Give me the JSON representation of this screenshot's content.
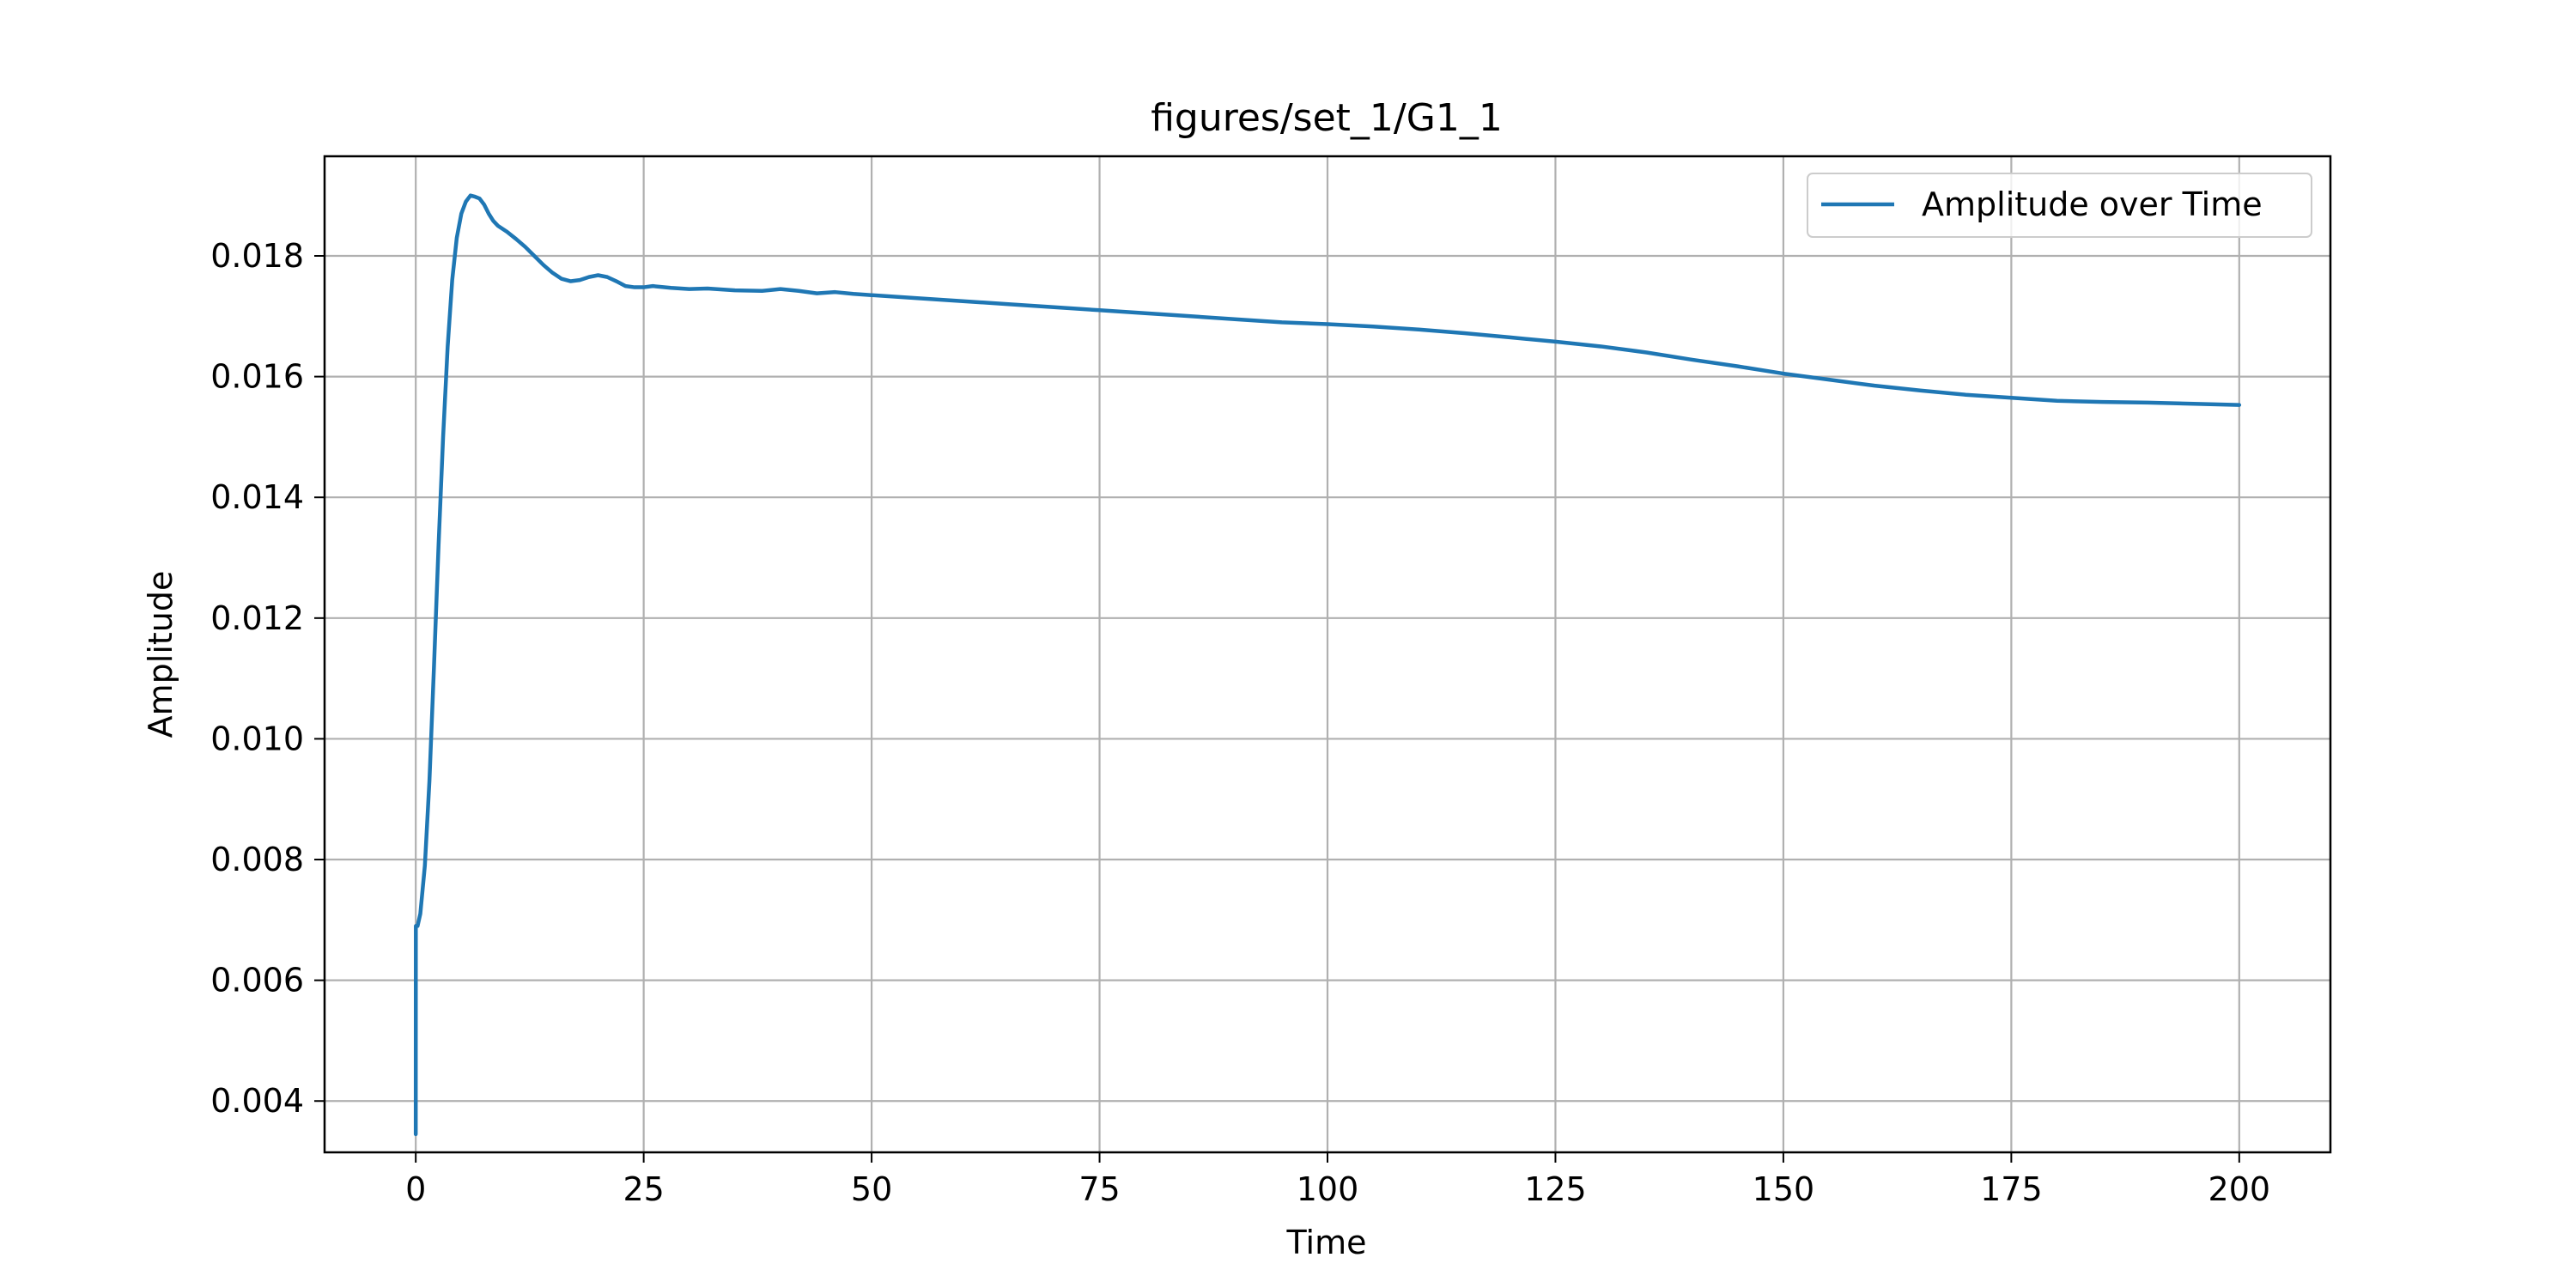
{
  "chart_data": {
    "type": "line",
    "title": "figures/set_1/G1_1",
    "xlabel": "Time",
    "ylabel": "Amplitude",
    "xlim": [
      -10,
      210
    ],
    "ylim": [
      0.00315,
      0.01965
    ],
    "xticks": [
      0,
      25,
      50,
      75,
      100,
      125,
      150,
      175,
      200
    ],
    "xtick_labels": [
      "0",
      "25",
      "50",
      "75",
      "100",
      "125",
      "150",
      "175",
      "200"
    ],
    "yticks": [
      0.004,
      0.006,
      0.008,
      0.01,
      0.012,
      0.014,
      0.016,
      0.018
    ],
    "ytick_labels": [
      "0.004",
      "0.006",
      "0.008",
      "0.010",
      "0.012",
      "0.014",
      "0.016",
      "0.018"
    ],
    "grid": true,
    "legend_position": "top-right",
    "series": [
      {
        "name": "Amplitude over Time",
        "color": "#1f77b4",
        "x": [
          0,
          0.01,
          0.2,
          0.5,
          1,
          1.5,
          2,
          2.5,
          3,
          3.5,
          4,
          4.5,
          5,
          5.5,
          6,
          6.5,
          7,
          7.5,
          8,
          8.5,
          9,
          10,
          11,
          12,
          13,
          14,
          15,
          16,
          17,
          18,
          19,
          20,
          21,
          22,
          23,
          24,
          25,
          26,
          28,
          30,
          32,
          35,
          38,
          40,
          42,
          44,
          46,
          48,
          50,
          55,
          60,
          65,
          70,
          75,
          80,
          85,
          90,
          95,
          100,
          105,
          110,
          115,
          120,
          125,
          130,
          135,
          140,
          145,
          150,
          155,
          160,
          165,
          170,
          175,
          180,
          185,
          190,
          195,
          200
        ],
        "y": [
          0.00345,
          0.0069,
          0.0069,
          0.0071,
          0.0079,
          0.0093,
          0.0112,
          0.0132,
          0.015,
          0.0165,
          0.0176,
          0.0183,
          0.0187,
          0.0189,
          0.019,
          0.01898,
          0.01895,
          0.01885,
          0.0187,
          0.01858,
          0.0185,
          0.0184,
          0.01828,
          0.01815,
          0.018,
          0.01785,
          0.01772,
          0.01762,
          0.01758,
          0.0176,
          0.01765,
          0.01768,
          0.01765,
          0.01758,
          0.0175,
          0.01748,
          0.01748,
          0.0175,
          0.01747,
          0.01745,
          0.01746,
          0.01743,
          0.01742,
          0.01745,
          0.01742,
          0.01738,
          0.0174,
          0.01737,
          0.01735,
          0.0173,
          0.01725,
          0.0172,
          0.01715,
          0.0171,
          0.01705,
          0.017,
          0.01695,
          0.0169,
          0.01687,
          0.01683,
          0.01678,
          0.01672,
          0.01665,
          0.01658,
          0.0165,
          0.0164,
          0.01628,
          0.01617,
          0.01605,
          0.01595,
          0.01585,
          0.01577,
          0.0157,
          0.01565,
          0.0156,
          0.01558,
          0.01557,
          0.01555,
          0.01553
        ]
      }
    ]
  }
}
